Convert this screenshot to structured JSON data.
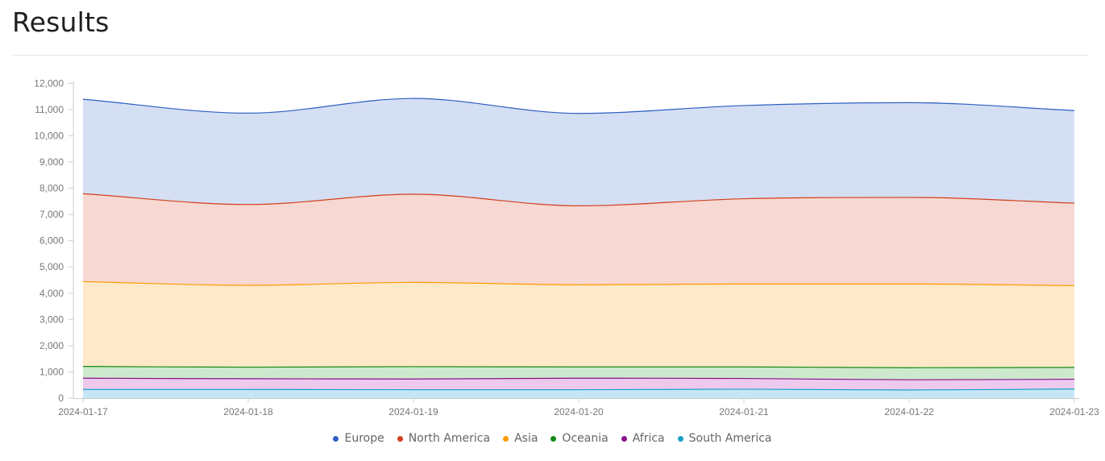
{
  "page": {
    "title": "Results"
  },
  "chart_data": {
    "type": "area",
    "stacked": true,
    "x": [
      "2024-01-17",
      "2024-01-18",
      "2024-01-19",
      "2024-01-20",
      "2024-01-21",
      "2024-01-22",
      "2024-01-23"
    ],
    "ylim": [
      0,
      12500
    ],
    "yticks": [
      0,
      1000,
      2000,
      3000,
      4000,
      5000,
      6000,
      7000,
      8000,
      9000,
      10000,
      11000,
      12000
    ],
    "grid": false,
    "legend_position": "bottom",
    "series": [
      {
        "name": "South America",
        "color": "#1a9fc7",
        "fill": "#c6e6f6",
        "values": [
          330,
          330,
          320,
          320,
          340,
          310,
          350
        ]
      },
      {
        "name": "Africa",
        "color": "#8a118c",
        "fill": "#ecc9ed",
        "values": [
          430,
          410,
          410,
          440,
          410,
          390,
          370
        ]
      },
      {
        "name": "Oceania",
        "color": "#128a12",
        "fill": "#cde9cd",
        "values": [
          450,
          440,
          470,
          430,
          440,
          460,
          450
        ]
      },
      {
        "name": "Asia",
        "color": "#ff9a00",
        "fill": "#ffe9c9",
        "values": [
          3230,
          3120,
          3210,
          3130,
          3160,
          3190,
          3120
        ]
      },
      {
        "name": "North America",
        "color": "#d23f1b",
        "fill": "#f7d8d2",
        "values": [
          3350,
          3080,
          3360,
          3010,
          3250,
          3300,
          3140
        ]
      },
      {
        "name": "Europe",
        "color": "#2f5fc4",
        "fill": "#d5dff4",
        "values": [
          3600,
          3480,
          3650,
          3520,
          3550,
          3610,
          3530
        ]
      }
    ]
  }
}
